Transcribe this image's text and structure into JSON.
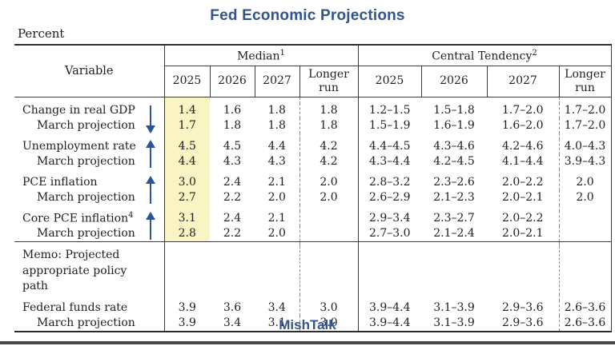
{
  "page": {
    "title": "Fed Economic Projections",
    "unit_label": "Percent",
    "footer_brand": "MishTalk"
  },
  "colors": {
    "accent_blue": "#30548f",
    "arrow_blue": "#2a559c",
    "highlight_yellow": "#faf3c3",
    "rule_dark": "#2b2b2b",
    "dashed_gray": "#8c8c8c",
    "bottom_bar": "#48484c"
  },
  "chart_data": {
    "type": "table",
    "title": "Fed Economic Projections",
    "unit": "Percent",
    "row_header": "Variable",
    "column_groups": [
      {
        "label": "Median",
        "footnote": "1",
        "columns": [
          "2025",
          "2026",
          "2027",
          "Longer run"
        ]
      },
      {
        "label": "Central Tendency",
        "footnote": "2",
        "columns": [
          "2025",
          "2026",
          "2027",
          "Longer run"
        ]
      }
    ],
    "rows": [
      {
        "label": "Change in real GDP",
        "arrow": "down",
        "group_start": true,
        "highlight": true,
        "median": [
          "1.4",
          "1.6",
          "1.8",
          "1.8"
        ],
        "central_tendency": [
          "1.2–1.5",
          "1.5–1.8",
          "1.7–2.0",
          "1.7–2.0"
        ]
      },
      {
        "label": "March projection",
        "indent": true,
        "highlight": true,
        "median": [
          "1.7",
          "1.8",
          "1.8",
          "1.8"
        ],
        "central_tendency": [
          "1.5–1.9",
          "1.6–1.9",
          "1.6–2.0",
          "1.7–2.0"
        ]
      },
      {
        "label": "Unemployment rate",
        "arrow": "up",
        "group_start": true,
        "highlight": true,
        "median": [
          "4.5",
          "4.5",
          "4.4",
          "4.2"
        ],
        "central_tendency": [
          "4.4–4.5",
          "4.3–4.6",
          "4.2–4.6",
          "4.0–4.3"
        ]
      },
      {
        "label": "March projection",
        "indent": true,
        "highlight": true,
        "median": [
          "4.4",
          "4.3",
          "4.3",
          "4.2"
        ],
        "central_tendency": [
          "4.3–4.4",
          "4.2–4.5",
          "4.1–4.4",
          "3.9–4.3"
        ]
      },
      {
        "label": "PCE inflation",
        "arrow": "up",
        "group_start": true,
        "highlight": true,
        "median": [
          "3.0",
          "2.4",
          "2.1",
          "2.0"
        ],
        "central_tendency": [
          "2.8–3.2",
          "2.3–2.6",
          "2.0–2.2",
          "2.0"
        ]
      },
      {
        "label": "March projection",
        "indent": true,
        "highlight": true,
        "median": [
          "2.7",
          "2.2",
          "2.0",
          "2.0"
        ],
        "central_tendency": [
          "2.6–2.9",
          "2.1–2.3",
          "2.0–2.1",
          "2.0"
        ]
      },
      {
        "label": "Core PCE inflation",
        "footnote": "4",
        "arrow": "up",
        "group_start": true,
        "highlight": true,
        "median": [
          "3.1",
          "2.4",
          "2.1",
          ""
        ],
        "central_tendency": [
          "2.9–3.4",
          "2.3–2.7",
          "2.0–2.2",
          ""
        ]
      },
      {
        "label": "March projection",
        "indent": true,
        "highlight": true,
        "median": [
          "2.8",
          "2.2",
          "2.0",
          ""
        ],
        "central_tendency": [
          "2.7–3.0",
          "2.1–2.4",
          "2.0–2.1",
          ""
        ]
      },
      {
        "label": "Memo: Projected appropriate policy path",
        "memo": true,
        "section_start": true,
        "median": [
          "",
          "",
          "",
          ""
        ],
        "central_tendency": [
          "",
          "",
          "",
          ""
        ]
      },
      {
        "label": "Federal funds rate",
        "group_start": true,
        "median": [
          "3.9",
          "3.6",
          "3.4",
          "3.0"
        ],
        "central_tendency": [
          "3.9–4.4",
          "3.1–3.9",
          "2.9–3.6",
          "2.6–3.6"
        ]
      },
      {
        "label": "March projection",
        "indent": true,
        "median": [
          "3.9",
          "3.4",
          "3.1",
          "3.0"
        ],
        "central_tendency": [
          "3.9–4.4",
          "3.1–3.9",
          "2.9–3.6",
          "2.6–3.6"
        ]
      }
    ]
  }
}
